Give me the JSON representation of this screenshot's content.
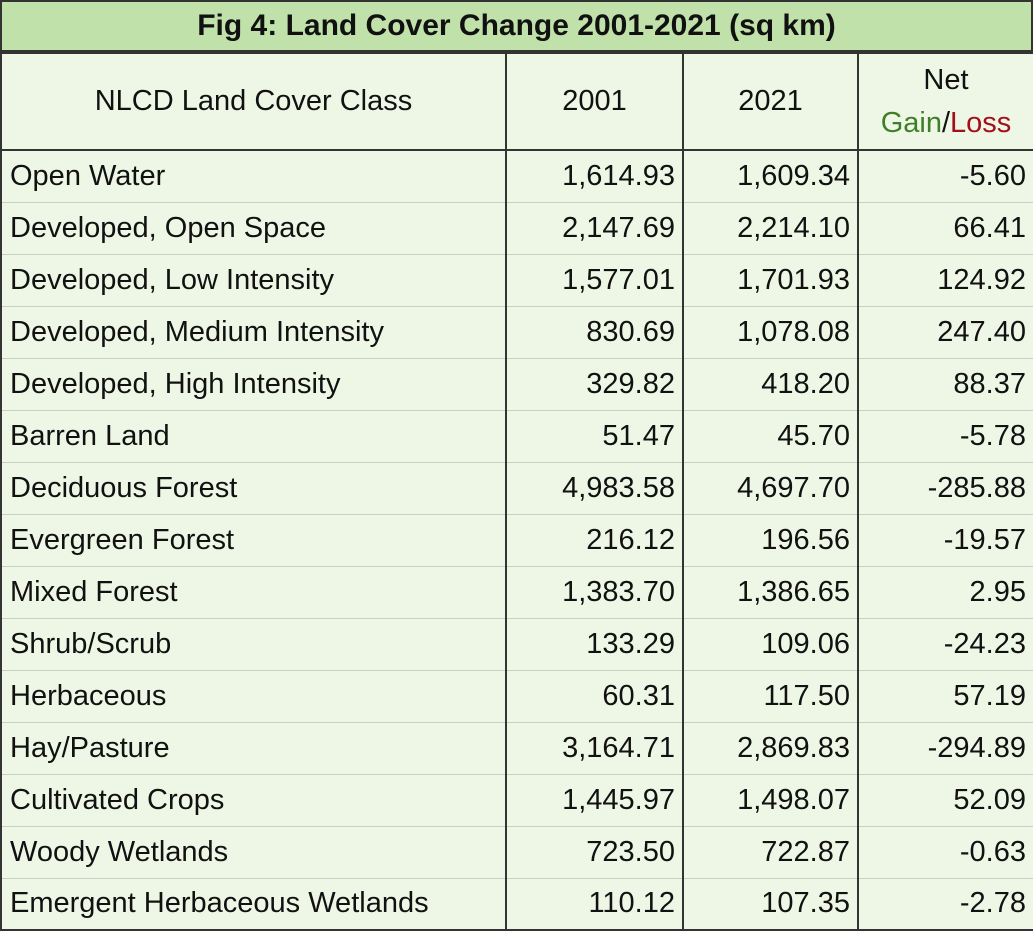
{
  "chart_data": {
    "type": "table",
    "title": "Fig 4: Land Cover Change 2001-2021 (sq km)",
    "columns": {
      "class": "NLCD Land Cover Class",
      "y2001": "2001",
      "y2021": "2021",
      "net_top": "Net",
      "net_gain": "Gain",
      "net_sep": "/",
      "net_loss": "Loss"
    },
    "colors": {
      "title_bg": "#c0e2aa",
      "table_bg": "#eef7e6",
      "gain": "#3f7f27",
      "loss": "#a11218"
    },
    "rows": [
      {
        "class": "Open Water",
        "y2001": "1,614.93",
        "y2021": "1,609.34",
        "net": "-5.60"
      },
      {
        "class": "Developed, Open Space",
        "y2001": "2,147.69",
        "y2021": "2,214.10",
        "net": "66.41"
      },
      {
        "class": "Developed, Low Intensity",
        "y2001": "1,577.01",
        "y2021": "1,701.93",
        "net": "124.92"
      },
      {
        "class": "Developed, Medium Intensity",
        "y2001": "830.69",
        "y2021": "1,078.08",
        "net": "247.40"
      },
      {
        "class": "Developed, High Intensity",
        "y2001": "329.82",
        "y2021": "418.20",
        "net": "88.37"
      },
      {
        "class": "Barren Land",
        "y2001": "51.47",
        "y2021": "45.70",
        "net": "-5.78"
      },
      {
        "class": "Deciduous Forest",
        "y2001": "4,983.58",
        "y2021": "4,697.70",
        "net": "-285.88"
      },
      {
        "class": "Evergreen Forest",
        "y2001": "216.12",
        "y2021": "196.56",
        "net": "-19.57"
      },
      {
        "class": "Mixed Forest",
        "y2001": "1,383.70",
        "y2021": "1,386.65",
        "net": "2.95"
      },
      {
        "class": "Shrub/Scrub",
        "y2001": "133.29",
        "y2021": "109.06",
        "net": "-24.23"
      },
      {
        "class": "Herbaceous",
        "y2001": "60.31",
        "y2021": "117.50",
        "net": "57.19"
      },
      {
        "class": "Hay/Pasture",
        "y2001": "3,164.71",
        "y2021": "2,869.83",
        "net": "-294.89"
      },
      {
        "class": "Cultivated Crops",
        "y2001": "1,445.97",
        "y2021": "1,498.07",
        "net": "52.09"
      },
      {
        "class": "Woody Wetlands",
        "y2001": "723.50",
        "y2021": "722.87",
        "net": "-0.63"
      },
      {
        "class": "Emergent Herbaceous Wetlands",
        "y2001": "110.12",
        "y2021": "107.35",
        "net": "-2.78"
      }
    ]
  }
}
